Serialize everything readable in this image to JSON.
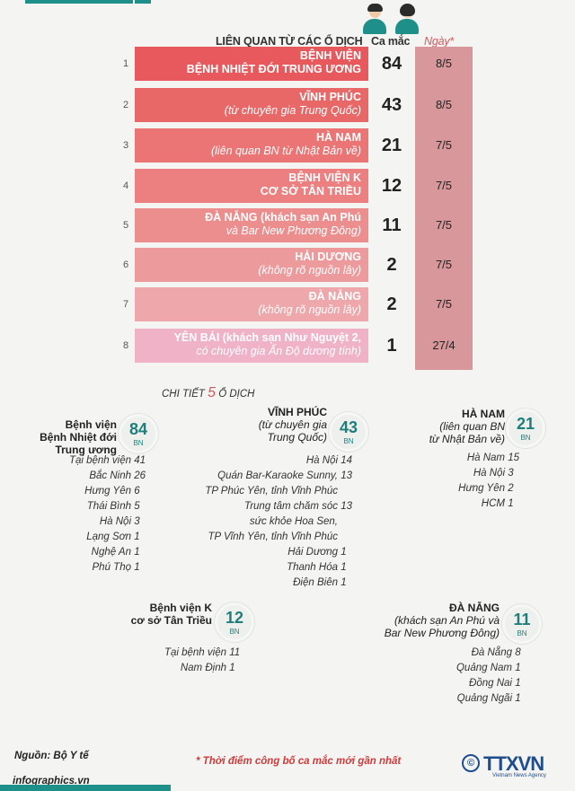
{
  "header": {
    "col_source": "LIÊN QUAN TỪ CÁC Ổ DỊCH",
    "col_cases": "Ca mắc",
    "col_date": "Ngày*"
  },
  "rows": [
    {
      "num": "1",
      "line1": "BỆNH VIỆN",
      "line2": "BỆNH NHIỆT ĐỚI TRUNG ƯƠNG",
      "cases": "84",
      "date": "8/5",
      "color": "#e8595d"
    },
    {
      "num": "2",
      "line1": "VĨNH PHÚC",
      "line2": "(từ chuyên gia Trung Quốc)",
      "cases": "43",
      "date": "8/5",
      "color": "#e86868"
    },
    {
      "num": "3",
      "line1": "HÀ NAM",
      "line2": "(liên quan BN từ Nhật Bản về)",
      "cases": "21",
      "date": "7/5",
      "color": "#eb7474"
    },
    {
      "num": "4",
      "line1": "BỆNH VIỆN K",
      "line2": "CƠ SỞ TÂN TRIỀU",
      "cases": "12",
      "date": "7/5",
      "color": "#ec7f80"
    },
    {
      "num": "5",
      "line1": "ĐÀ NẴNG (khách sạn An Phú",
      "line2": "và Bar New Phương Đông)",
      "cases": "11",
      "date": "7/5",
      "color": "#ec8d8e"
    },
    {
      "num": "6",
      "line1": "HẢI DƯƠNG",
      "line2": "(không rõ nguồn lây)",
      "cases": "2",
      "date": "7/5",
      "color": "#ed9a9c"
    },
    {
      "num": "7",
      "line1": "ĐÀ NẴNG",
      "line2": "(không rõ nguồn lây)",
      "cases": "2",
      "date": "7/5",
      "color": "#eea7aa"
    },
    {
      "num": "8",
      "line1": "YÊN BÁI (khách sạn Như Nguyệt 2,",
      "line2": "có chuyên gia Ấn Độ dương tính)",
      "cases": "1",
      "date": "27/4",
      "color": "#efb2c6"
    }
  ],
  "detail_title_pre": "CHI TIẾT",
  "detail_title_num": "5",
  "detail_title_post": "Ổ DỊCH",
  "clusters": {
    "bv_nhiet_doi": {
      "title": [
        "Bệnh viện",
        "Bệnh Nhiệt đới",
        "Trung ương"
      ],
      "count": "84",
      "unit": "BN",
      "items": [
        {
          "place": "Tại bệnh viện",
          "n": "41"
        },
        {
          "place": "Bắc Ninh",
          "n": "26"
        },
        {
          "place": "Hưng Yên",
          "n": "6"
        },
        {
          "place": "Thái Bình",
          "n": "5"
        },
        {
          "place": "Hà Nội",
          "n": "3"
        },
        {
          "place": "Lạng Sơn",
          "n": "1"
        },
        {
          "place": "Nghệ An",
          "n": "1"
        },
        {
          "place": "Phú Thọ",
          "n": "1"
        }
      ]
    },
    "vinh_phuc": {
      "title": [
        "VĨNH PHÚC",
        "(từ chuyên gia",
        "Trung Quốc)"
      ],
      "count": "43",
      "unit": "BN",
      "items": [
        {
          "place": "Hà Nội",
          "n": "14"
        },
        {
          "place": "Quán Bar-Karaoke Sunny,",
          "n": "13"
        },
        {
          "place": "TP Phúc Yên, tỉnh Vĩnh Phúc",
          "n": ""
        },
        {
          "place": "Trung tâm chăm sóc",
          "n": "13"
        },
        {
          "place": "sức khỏe Hoa Sen,",
          "n": ""
        },
        {
          "place": "TP Vĩnh Yên, tỉnh Vĩnh Phúc",
          "n": ""
        },
        {
          "place": "Hải Dương",
          "n": "1"
        },
        {
          "place": "Thanh Hóa",
          "n": "1"
        },
        {
          "place": "Điện Biên",
          "n": "1"
        }
      ]
    },
    "ha_nam": {
      "title": [
        "HÀ NAM",
        "(liên quan BN",
        "từ Nhật Bản về)"
      ],
      "count": "21",
      "unit": "BN",
      "items": [
        {
          "place": "Hà Nam",
          "n": "15"
        },
        {
          "place": "Hà Nội",
          "n": "3"
        },
        {
          "place": "Hưng Yên",
          "n": "2"
        },
        {
          "place": "HCM",
          "n": "1"
        }
      ]
    },
    "bv_k": {
      "title": [
        "Bệnh viện K",
        "cơ sở Tân Triều"
      ],
      "count": "12",
      "unit": "BN",
      "items": [
        {
          "place": "Tại bệnh viện",
          "n": "11"
        },
        {
          "place": "Nam Định",
          "n": "1"
        }
      ]
    },
    "da_nang": {
      "title": [
        "ĐÀ NẴNG",
        "(khách sạn An Phú và",
        "Bar New Phương Đông)"
      ],
      "count": "11",
      "unit": "BN",
      "items": [
        {
          "place": "Đà Nẵng",
          "n": "8"
        },
        {
          "place": "Quảng Nam",
          "n": "1"
        },
        {
          "place": "Đồng Nai",
          "n": "1"
        },
        {
          "place": "Quảng Ngãi",
          "n": "1"
        }
      ]
    }
  },
  "footer": {
    "source": "Nguồn: Bộ Y tế",
    "note": "* Thời điểm công bố ca mắc mới gần nhất",
    "site": "infographics.vn",
    "copyright": "©",
    "logo": "TTXVN",
    "logo_sub": "Vietnam News Agency"
  }
}
